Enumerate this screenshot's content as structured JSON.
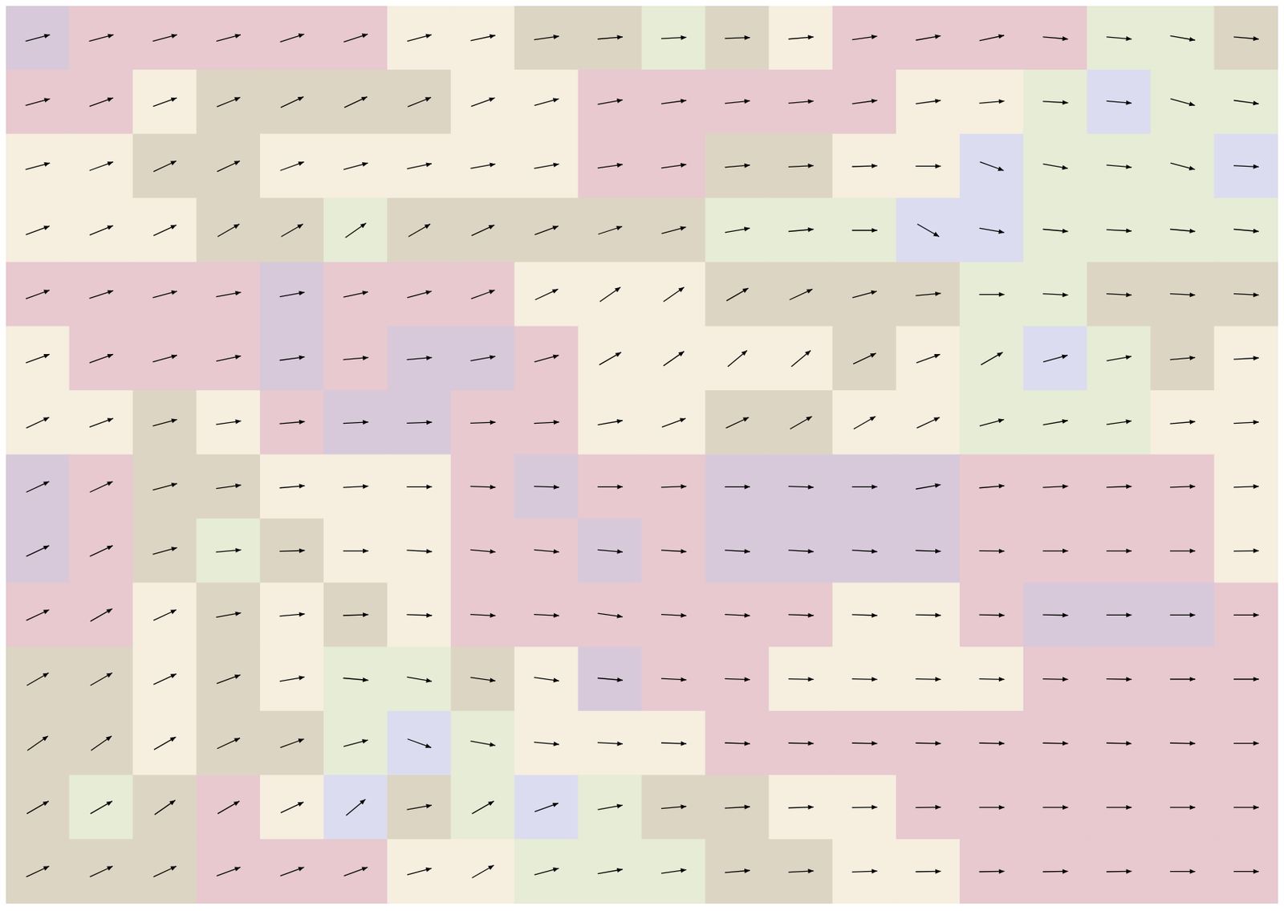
{
  "chart_data": {
    "type": "contour_quiver",
    "xlim": [
      0,
      20
    ],
    "ylim": [
      0,
      14
    ],
    "tick_labels": false,
    "grid": false,
    "colors": [
      "#e6ecd5",
      "#ddd5c3",
      "#f6eedf",
      "#e7c9cf",
      "#d8c9da",
      "#dcdcf0"
    ],
    "field": [
      [
        4,
        3,
        3,
        3,
        3,
        3,
        2,
        2,
        1,
        1,
        0,
        1,
        2,
        3,
        3,
        3,
        3,
        0,
        0,
        1
      ],
      [
        3,
        3,
        2,
        1,
        1,
        1,
        1,
        2,
        2,
        3,
        3,
        3,
        3,
        3,
        2,
        2,
        0,
        5,
        0,
        0
      ],
      [
        2,
        2,
        1,
        1,
        2,
        2,
        2,
        2,
        2,
        3,
        3,
        1,
        1,
        2,
        2,
        5,
        0,
        0,
        0,
        5
      ],
      [
        2,
        2,
        2,
        1,
        1,
        0,
        1,
        1,
        1,
        1,
        1,
        0,
        0,
        0,
        5,
        5,
        0,
        0,
        0,
        0
      ],
      [
        3,
        3,
        3,
        3,
        4,
        3,
        3,
        3,
        2,
        2,
        2,
        1,
        1,
        1,
        1,
        0,
        0,
        1,
        1,
        1
      ],
      [
        2,
        3,
        3,
        3,
        4,
        3,
        4,
        4,
        3,
        2,
        2,
        2,
        2,
        1,
        2,
        0,
        5,
        0,
        1,
        2
      ],
      [
        2,
        2,
        1,
        2,
        3,
        4,
        4,
        3,
        3,
        2,
        2,
        1,
        1,
        2,
        2,
        0,
        0,
        0,
        2,
        2
      ],
      [
        4,
        3,
        1,
        1,
        2,
        2,
        2,
        3,
        4,
        3,
        3,
        4,
        4,
        4,
        4,
        3,
        3,
        3,
        3,
        2
      ],
      [
        4,
        3,
        1,
        0,
        1,
        2,
        2,
        3,
        3,
        4,
        3,
        4,
        4,
        4,
        4,
        3,
        3,
        3,
        3,
        2
      ],
      [
        3,
        3,
        2,
        1,
        2,
        1,
        2,
        3,
        3,
        3,
        3,
        3,
        3,
        2,
        2,
        3,
        4,
        4,
        4,
        3
      ],
      [
        1,
        1,
        2,
        1,
        2,
        0,
        0,
        1,
        2,
        4,
        3,
        3,
        2,
        2,
        2,
        2,
        3,
        3,
        3,
        3
      ],
      [
        1,
        1,
        2,
        1,
        1,
        0,
        5,
        0,
        2,
        2,
        2,
        3,
        3,
        3,
        3,
        3,
        3,
        3,
        3,
        3
      ],
      [
        1,
        0,
        1,
        3,
        2,
        5,
        1,
        0,
        5,
        0,
        1,
        1,
        2,
        2,
        3,
        3,
        3,
        3,
        3,
        3
      ],
      [
        1,
        1,
        1,
        3,
        3,
        3,
        2,
        2,
        0,
        0,
        0,
        1,
        1,
        2,
        2,
        3,
        3,
        3,
        3,
        3
      ]
    ],
    "wind_angle": [
      [
        15,
        15,
        15,
        15,
        18,
        18,
        15,
        12,
        8,
        5,
        3,
        2,
        5,
        8,
        10,
        12,
        -5,
        -5,
        -10,
        -5
      ],
      [
        15,
        20,
        20,
        22,
        25,
        25,
        22,
        20,
        15,
        10,
        8,
        6,
        5,
        8,
        8,
        5,
        -3,
        -5,
        -15,
        -8
      ],
      [
        15,
        20,
        25,
        25,
        20,
        15,
        12,
        10,
        10,
        8,
        8,
        5,
        3,
        2,
        0,
        -20,
        -10,
        -5,
        -15,
        -3
      ],
      [
        20,
        22,
        25,
        30,
        30,
        35,
        30,
        25,
        20,
        18,
        15,
        10,
        5,
        0,
        -30,
        -10,
        -5,
        -3,
        -5,
        -5
      ],
      [
        20,
        18,
        15,
        10,
        10,
        12,
        15,
        20,
        25,
        35,
        35,
        30,
        25,
        15,
        5,
        0,
        -3,
        -3,
        -3,
        -3
      ],
      [
        20,
        20,
        15,
        12,
        8,
        5,
        5,
        10,
        15,
        30,
        35,
        40,
        40,
        25,
        20,
        30,
        15,
        10,
        5,
        3
      ],
      [
        25,
        20,
        15,
        8,
        5,
        3,
        2,
        2,
        3,
        10,
        20,
        25,
        30,
        30,
        25,
        15,
        10,
        8,
        5,
        3
      ],
      [
        25,
        25,
        15,
        8,
        5,
        3,
        0,
        -2,
        -2,
        0,
        2,
        0,
        -2,
        0,
        10,
        5,
        3,
        2,
        2,
        2
      ],
      [
        25,
        25,
        15,
        5,
        2,
        0,
        -3,
        -5,
        -5,
        -5,
        -3,
        -3,
        -3,
        -3,
        -2,
        -1,
        0,
        0,
        0,
        1
      ],
      [
        25,
        30,
        25,
        10,
        5,
        2,
        -2,
        -3,
        -3,
        -8,
        -3,
        -3,
        -2,
        -2,
        -1,
        -1,
        -1,
        0,
        0,
        0
      ],
      [
        30,
        30,
        25,
        20,
        10,
        -5,
        -10,
        -8,
        -8,
        -5,
        -3,
        -2,
        -1,
        -1,
        -1,
        -1,
        -1,
        -1,
        0,
        0
      ],
      [
        35,
        35,
        30,
        25,
        20,
        15,
        -20,
        -10,
        -5,
        -3,
        -2,
        -2,
        -1,
        -1,
        -1,
        -1,
        -1,
        -1,
        -1,
        0
      ],
      [
        30,
        30,
        35,
        30,
        25,
        40,
        10,
        30,
        20,
        10,
        5,
        3,
        2,
        1,
        1,
        0,
        0,
        0,
        0,
        0
      ],
      [
        25,
        25,
        25,
        20,
        20,
        20,
        15,
        30,
        15,
        10,
        8,
        5,
        3,
        2,
        1,
        1,
        1,
        1,
        0,
        0
      ]
    ]
  }
}
